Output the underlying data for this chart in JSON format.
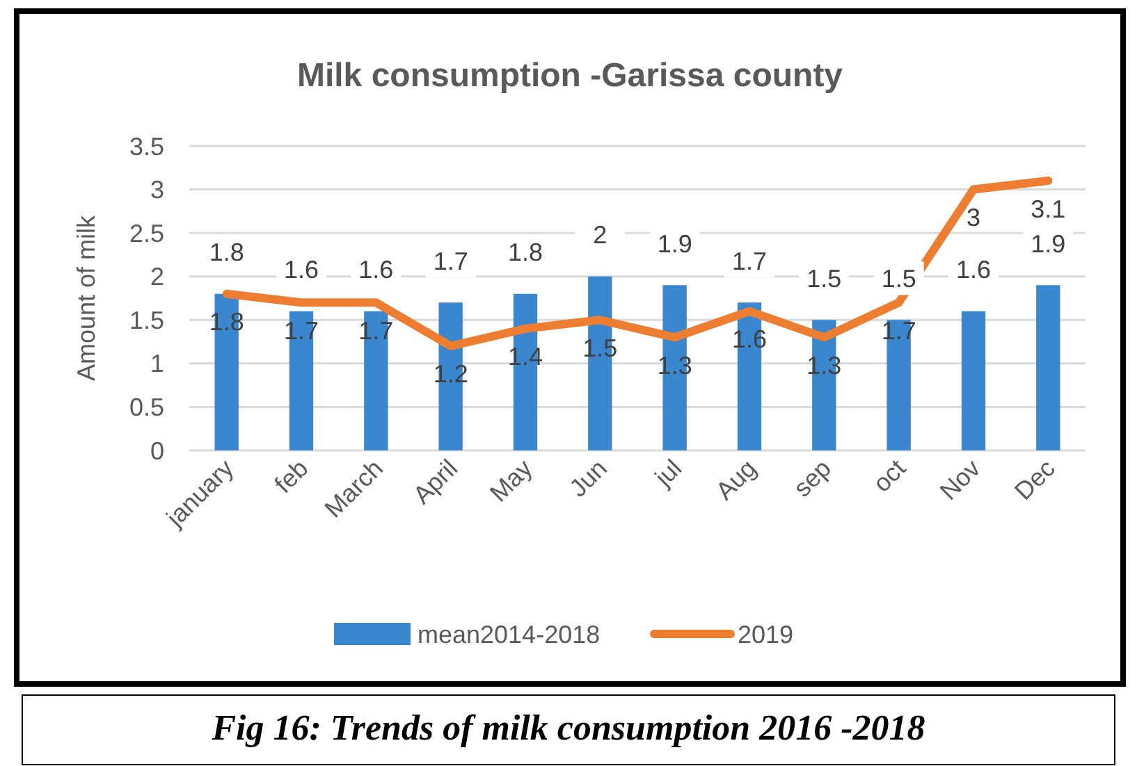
{
  "chart_data": {
    "type": "bar",
    "title": "Milk consumption -Garissa county",
    "ylabel": "Amount of milk",
    "categories": [
      "january",
      "feb",
      "March",
      "April",
      "May",
      "Jun",
      "jul",
      "Aug",
      "sep",
      "oct",
      "Nov",
      "Dec"
    ],
    "series": [
      {
        "name": "mean2014-2018",
        "color": "#3a87cf",
        "values": [
          1.8,
          1.6,
          1.6,
          1.7,
          1.8,
          2,
          1.9,
          1.7,
          1.5,
          1.5,
          1.6,
          1.9
        ]
      },
      {
        "name": "2019",
        "type": "line",
        "color": "#ed7d31",
        "values": [
          1.8,
          1.7,
          1.7,
          1.2,
          1.4,
          1.5,
          1.3,
          1.6,
          1.3,
          1.7,
          3,
          3.1
        ]
      }
    ],
    "ylim": [
      0,
      3.5
    ],
    "yticks": [
      0,
      0.5,
      1,
      1.5,
      2,
      2.5,
      3,
      3.5
    ],
    "grid": "y",
    "legend": "bottom",
    "data_labels": true,
    "marker": "none",
    "annotations": [
      "Fig 16: Trends of milk consumption 2016 -2018"
    ]
  }
}
